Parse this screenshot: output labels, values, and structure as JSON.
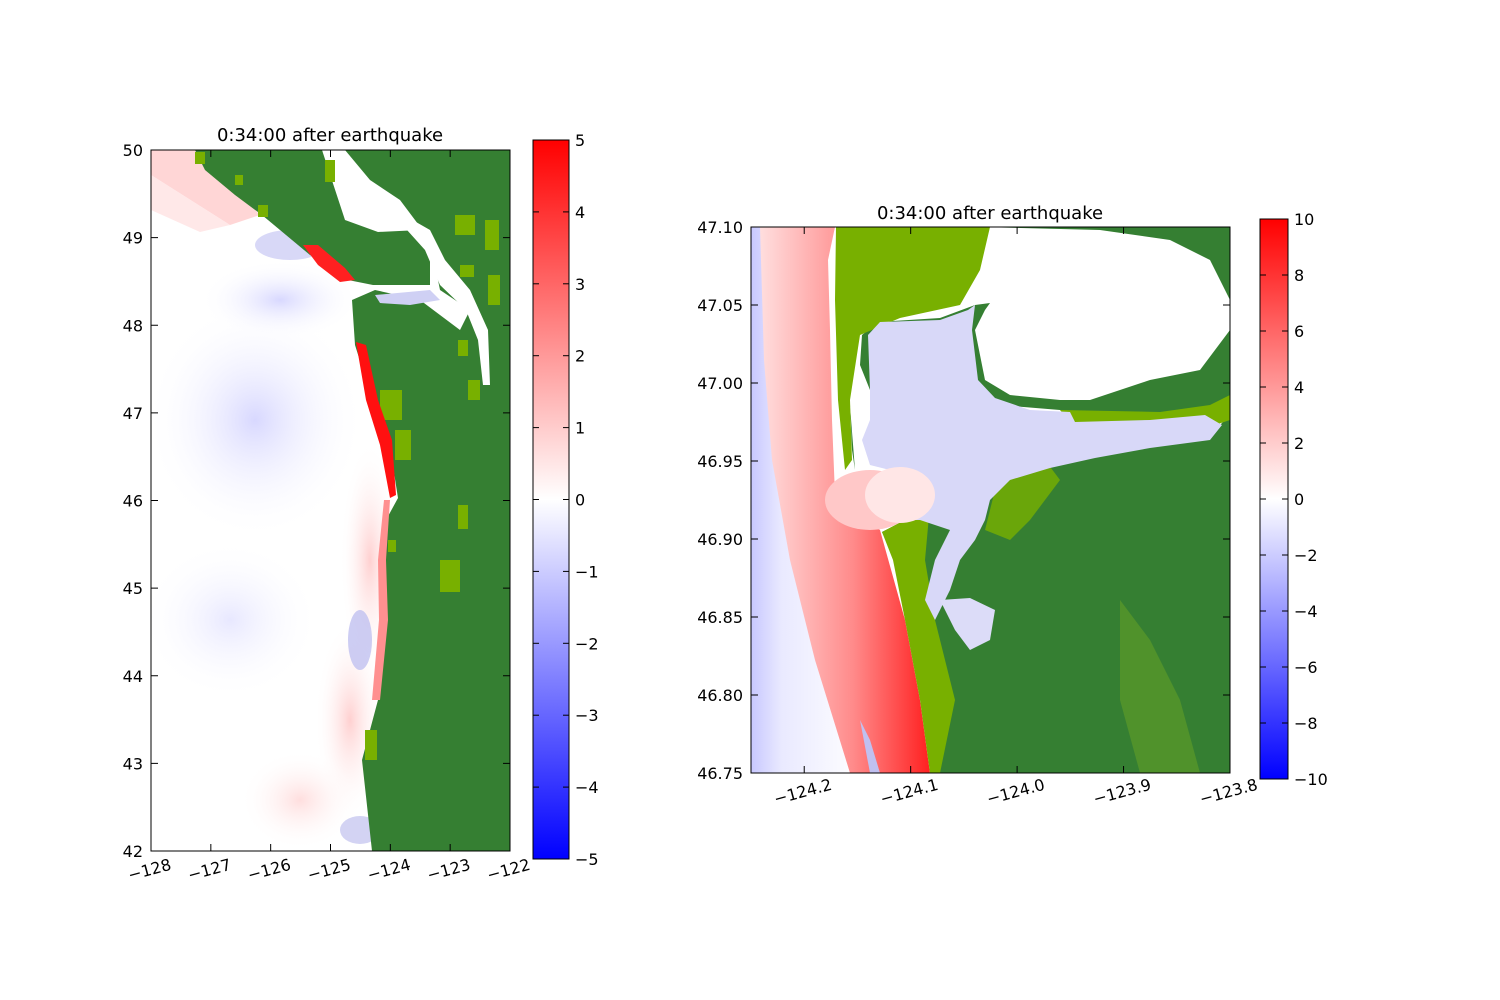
{
  "chart_data": [
    {
      "type": "heatmap",
      "title": "0:34:00 after earthquake",
      "xlabel": "",
      "ylabel": "",
      "xlim": [
        -128,
        -122
      ],
      "ylim": [
        42,
        50
      ],
      "xticks": [
        -128,
        -127,
        -126,
        -125,
        -124,
        -123,
        -122
      ],
      "xtick_labels": [
        "−128",
        "−127",
        "−126",
        "−125",
        "−124",
        "−123",
        "−122"
      ],
      "yticks": [
        42,
        43,
        44,
        45,
        46,
        47,
        48,
        49,
        50
      ],
      "ytick_labels": [
        "42",
        "43",
        "44",
        "45",
        "46",
        "47",
        "48",
        "49",
        "50"
      ],
      "colorbar": {
        "range": [
          -5,
          5
        ],
        "ticks": [
          -5,
          -4,
          -3,
          -2,
          -1,
          0,
          1,
          2,
          3,
          4,
          5
        ],
        "tick_labels": [
          "−5",
          "−4",
          "−3",
          "−2",
          "−1",
          "0",
          "1",
          "2",
          "3",
          "4",
          "5"
        ],
        "colors": [
          "#0000ff",
          "#ffffff",
          "#ff0000"
        ]
      },
      "land_colors": [
        "#357f32",
        "#78b000"
      ],
      "grid": false
    },
    {
      "type": "heatmap",
      "title": "0:34:00 after earthquake",
      "xlabel": "",
      "ylabel": "",
      "xlim": [
        -124.25,
        -123.8
      ],
      "ylim": [
        46.75,
        47.1
      ],
      "xticks": [
        -124.2,
        -124.1,
        -124.0,
        -123.9,
        -123.8
      ],
      "xtick_labels": [
        "−124.2",
        "−124.1",
        "−124.0",
        "−123.9",
        "−123.8"
      ],
      "yticks": [
        46.75,
        46.8,
        46.85,
        46.9,
        46.95,
        47.0,
        47.05,
        47.1
      ],
      "ytick_labels": [
        "46.75",
        "46.80",
        "46.85",
        "46.90",
        "46.95",
        "47.00",
        "47.05",
        "47.10"
      ],
      "colorbar": {
        "range": [
          -10,
          10
        ],
        "ticks": [
          -10,
          -8,
          -6,
          -4,
          -2,
          0,
          2,
          4,
          6,
          8,
          10
        ],
        "tick_labels": [
          "−10",
          "−8",
          "−6",
          "−4",
          "−2",
          "0",
          "2",
          "4",
          "6",
          "8",
          "10"
        ],
        "colors": [
          "#0000ff",
          "#ffffff",
          "#ff0000"
        ]
      },
      "land_colors": [
        "#357f32",
        "#78b000"
      ],
      "grid": false
    }
  ]
}
